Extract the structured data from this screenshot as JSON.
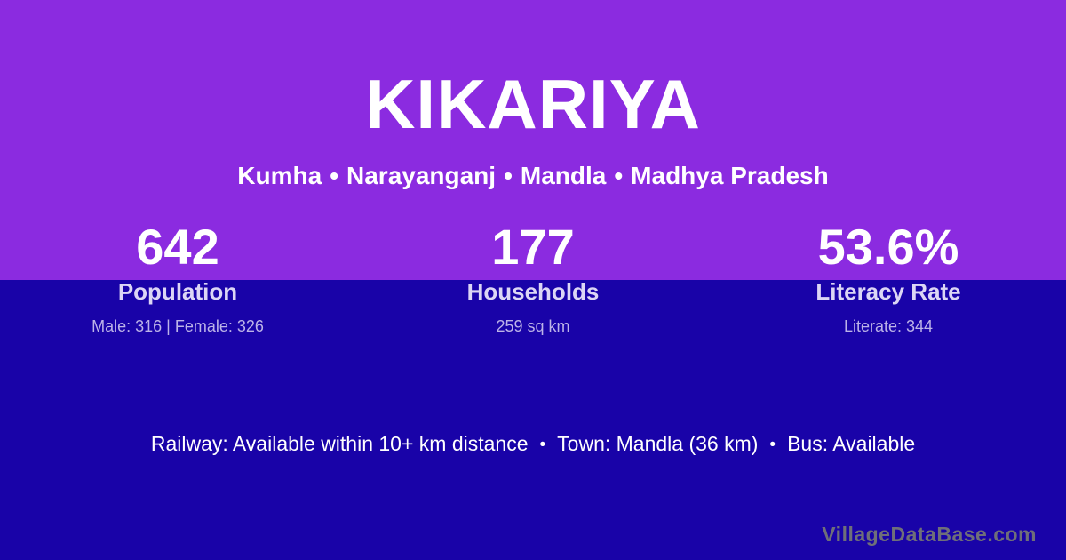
{
  "colors": {
    "top_background": "#8B2BE0",
    "bottom_background": "#1903A8",
    "primary_text": "#FFFFFF",
    "stat_label": "#DCD6F5",
    "stat_sub": "#BCB3E8",
    "watermark": "#6F6F79"
  },
  "header": {
    "title": "KIKARIYA",
    "separator": "•",
    "location_parts": [
      "Kumha",
      "Narayanganj",
      "Mandla",
      "Madhya Pradesh"
    ]
  },
  "stats": [
    {
      "value": "642",
      "label": "Population",
      "sub": "Male: 316 | Female: 326"
    },
    {
      "value": "177",
      "label": "Households",
      "sub": "259 sq km"
    },
    {
      "value": "53.6%",
      "label": "Literacy Rate",
      "sub": "Literate: 344"
    }
  ],
  "info": {
    "separator": "•",
    "items": [
      "Railway: Available within 10+ km distance",
      "Town: Mandla (36 km)",
      "Bus: Available"
    ]
  },
  "footer": {
    "watermark": "VillageDataBase.com"
  }
}
